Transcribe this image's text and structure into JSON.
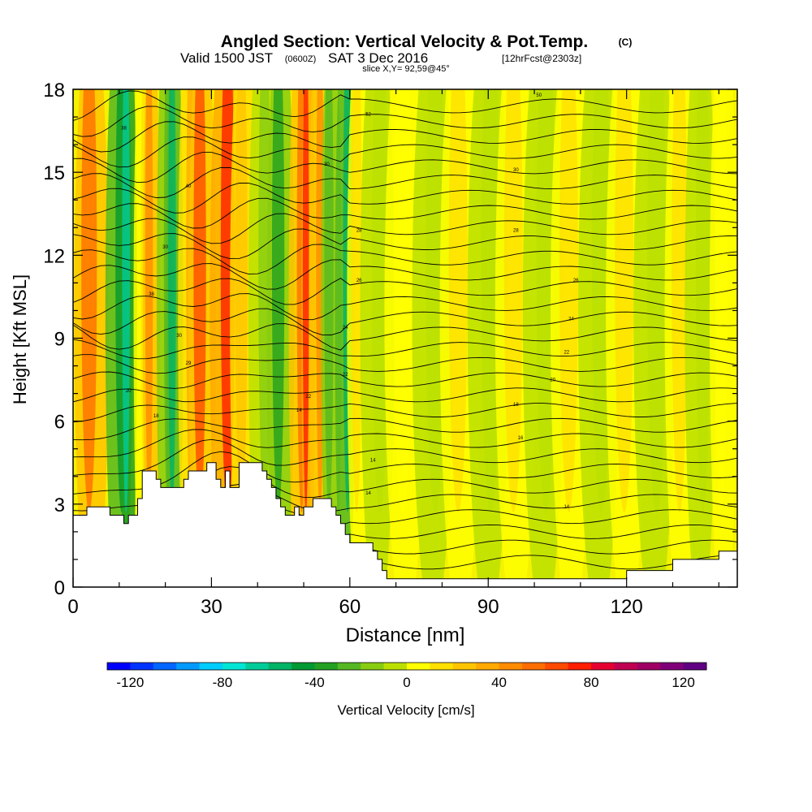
{
  "header": {
    "title": "Angled Section: Vertical Velocity & Pot.Temp.",
    "title_unit": "(C)",
    "valid_prefix": "Valid 1500 JST",
    "valid_utc": "(0600Z)",
    "valid_date": "SAT 3 Dec 2016",
    "forecast_tag": "[12hrFcst@2303z]",
    "slice": "slice X,Y= 92,59@45°"
  },
  "chart_data": {
    "type": "heatmap",
    "title": "Angled Section: Vertical Velocity & Pot.Temp.",
    "xlabel": "Distance [nm]",
    "ylabel": "Height [Kft MSL]",
    "xlim": [
      0,
      144
    ],
    "ylim": [
      0,
      18
    ],
    "x_ticks": [
      0,
      30,
      60,
      90,
      120
    ],
    "y_ticks": [
      0,
      3,
      6,
      9,
      12,
      15,
      18
    ],
    "grid": false,
    "terrain": {
      "x": [
        0,
        2,
        3,
        7,
        8,
        10,
        11,
        12,
        13,
        14,
        15,
        16,
        18,
        19,
        20,
        21,
        23,
        24,
        25,
        26,
        27,
        28,
        29,
        30,
        31,
        32,
        33,
        34,
        35,
        36,
        37,
        38,
        39,
        40,
        41,
        42,
        43,
        44,
        45,
        46,
        47,
        48,
        49,
        50,
        51,
        52,
        53,
        54,
        55,
        56,
        57,
        58,
        59,
        60,
        61,
        62,
        63,
        64,
        65,
        66,
        67,
        68,
        69,
        70,
        72,
        80,
        100,
        110,
        112,
        113,
        115,
        120,
        125,
        128,
        130,
        135,
        138,
        140,
        144
      ],
      "height": [
        2.6,
        2.6,
        2.9,
        2.9,
        2.6,
        2.6,
        2.3,
        2.6,
        2.6,
        3.2,
        4.2,
        4.2,
        3.9,
        3.6,
        3.6,
        3.6,
        3.6,
        3.9,
        4.2,
        4.2,
        4.2,
        4.2,
        4.5,
        4.5,
        3.9,
        3.6,
        4.2,
        3.6,
        3.6,
        4.5,
        4.5,
        4.5,
        4.5,
        4.5,
        4.2,
        3.9,
        3.6,
        3.2,
        2.9,
        2.6,
        2.6,
        2.9,
        2.6,
        2.9,
        2.9,
        3.2,
        3.2,
        3.2,
        3.2,
        2.9,
        2.6,
        2.3,
        1.9,
        1.6,
        1.6,
        1.6,
        1.6,
        1.6,
        1.3,
        1.0,
        0.6,
        0.3,
        0.3,
        0.3,
        0.3,
        0.3,
        0.3,
        0.3,
        0.3,
        0.3,
        0.3,
        0.6,
        0.6,
        0.6,
        1.0,
        1.0,
        1.0,
        1.3,
        1.3
      ]
    },
    "vertical_velocity_bands": [
      {
        "x": 4,
        "value": 55
      },
      {
        "x": 10,
        "value": -45
      },
      {
        "x": 12,
        "value": -70
      },
      {
        "x": 15,
        "value": 20
      },
      {
        "x": 17,
        "value": 45
      },
      {
        "x": 20,
        "value": -30
      },
      {
        "x": 22,
        "value": -55
      },
      {
        "x": 25,
        "value": 30
      },
      {
        "x": 28,
        "value": 60
      },
      {
        "x": 33,
        "value": 70
      },
      {
        "x": 37,
        "value": 25
      },
      {
        "x": 41,
        "value": -20
      },
      {
        "x": 45,
        "value": -40
      },
      {
        "x": 49,
        "value": 55
      },
      {
        "x": 51,
        "value": 70
      },
      {
        "x": 53,
        "value": 45
      },
      {
        "x": 56,
        "value": -30
      },
      {
        "x": 59,
        "value": -60
      },
      {
        "x": 62,
        "value": 10
      },
      {
        "x": 66,
        "value": -10
      },
      {
        "x": 72,
        "value": 5
      },
      {
        "x": 78,
        "value": -10
      },
      {
        "x": 84,
        "value": 10
      },
      {
        "x": 90,
        "value": -5
      },
      {
        "x": 96,
        "value": 10
      },
      {
        "x": 102,
        "value": -10
      },
      {
        "x": 108,
        "value": 10
      },
      {
        "x": 114,
        "value": -8
      },
      {
        "x": 120,
        "value": 12
      },
      {
        "x": 126,
        "value": -8
      },
      {
        "x": 132,
        "value": 10
      },
      {
        "x": 136,
        "value": -5
      },
      {
        "x": 141,
        "value": 8
      }
    ],
    "theta_contour_labels": [
      {
        "x": 11,
        "y": 16.6,
        "value": "38"
      },
      {
        "x": 25,
        "y": 14.5,
        "value": "40"
      },
      {
        "x": 20,
        "y": 12.3,
        "value": "30"
      },
      {
        "x": 17,
        "y": 10.6,
        "value": "38"
      },
      {
        "x": 23,
        "y": 9.1,
        "value": "30"
      },
      {
        "x": 25,
        "y": 8.1,
        "value": "29"
      },
      {
        "x": 12,
        "y": 7.1,
        "value": "20"
      },
      {
        "x": 18,
        "y": 6.2,
        "value": "18"
      },
      {
        "x": 51,
        "y": 6.9,
        "value": "22"
      },
      {
        "x": 49,
        "y": 6.4,
        "value": "14"
      },
      {
        "x": 64,
        "y": 17.1,
        "value": "52"
      },
      {
        "x": 101,
        "y": 17.8,
        "value": "50"
      },
      {
        "x": 55,
        "y": 15.3,
        "value": "30"
      },
      {
        "x": 96,
        "y": 15.1,
        "value": "30"
      },
      {
        "x": 62,
        "y": 12.9,
        "value": "28"
      },
      {
        "x": 96,
        "y": 12.9,
        "value": "28"
      },
      {
        "x": 62,
        "y": 11.1,
        "value": "26"
      },
      {
        "x": 109,
        "y": 11.1,
        "value": "26"
      },
      {
        "x": 59,
        "y": 9.4,
        "value": "24"
      },
      {
        "x": 108,
        "y": 9.7,
        "value": "24"
      },
      {
        "x": 59,
        "y": 7.7,
        "value": "22"
      },
      {
        "x": 107,
        "y": 8.5,
        "value": "22"
      },
      {
        "x": 104,
        "y": 7.5,
        "value": "20"
      },
      {
        "x": 96,
        "y": 6.6,
        "value": "18"
      },
      {
        "x": 97,
        "y": 5.4,
        "value": "16"
      },
      {
        "x": 65,
        "y": 4.6,
        "value": "14"
      },
      {
        "x": 64,
        "y": 3.4,
        "value": "14"
      },
      {
        "x": 107,
        "y": 2.9,
        "value": "14"
      }
    ],
    "colorbar": {
      "label": "Vertical Velocity [cm/s]",
      "range": [
        -130,
        130
      ],
      "ticks": [
        -120,
        -80,
        -40,
        0,
        40,
        80,
        120
      ],
      "colors": [
        "#0000ff",
        "#0033ff",
        "#0066ff",
        "#0099ff",
        "#00ccff",
        "#00e5d4",
        "#00cc99",
        "#00b366",
        "#009933",
        "#22a022",
        "#55b822",
        "#88cc11",
        "#bbe000",
        "#ffff00",
        "#ffe000",
        "#ffc400",
        "#ffaa00",
        "#ff8c00",
        "#ff6e00",
        "#ff4a00",
        "#ff1e00",
        "#e60032",
        "#c00050",
        "#a00064",
        "#800078",
        "#600082"
      ]
    }
  }
}
